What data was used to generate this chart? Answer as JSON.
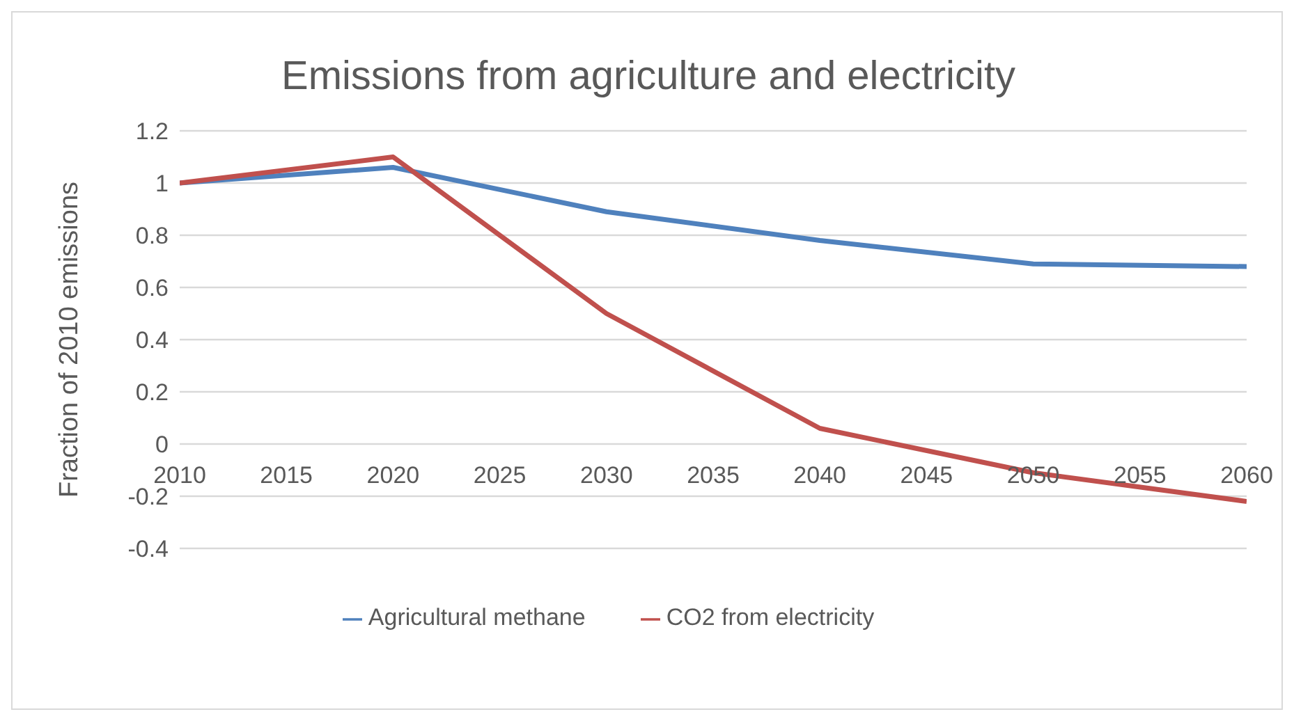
{
  "chart_data": {
    "type": "line",
    "title": "Emissions from agriculture and electricity",
    "ylabel": "Fraction of 2010 emissions",
    "x": [
      2010,
      2020,
      2030,
      2040,
      2050,
      2060
    ],
    "xlim": [
      2010,
      2060
    ],
    "xticks": [
      2010,
      2015,
      2020,
      2025,
      2030,
      2035,
      2040,
      2045,
      2050,
      2055,
      2060
    ],
    "ylim": [
      -0.4,
      1.2
    ],
    "yticks": [
      -0.4,
      -0.2,
      0,
      0.2,
      0.4,
      0.6,
      0.8,
      1,
      1.2
    ],
    "series": [
      {
        "name": "Agricultural methane",
        "color": "#4f81bd",
        "values": [
          1,
          1.06,
          0.89,
          0.78,
          0.69,
          0.68
        ]
      },
      {
        "name": "CO2 from electricity",
        "color": "#c0504d",
        "values": [
          1,
          1.1,
          0.5,
          0.06,
          -0.11,
          -0.22
        ]
      }
    ],
    "grid": "y",
    "legend": "bottom",
    "marker": "none",
    "line_style": "solid"
  }
}
